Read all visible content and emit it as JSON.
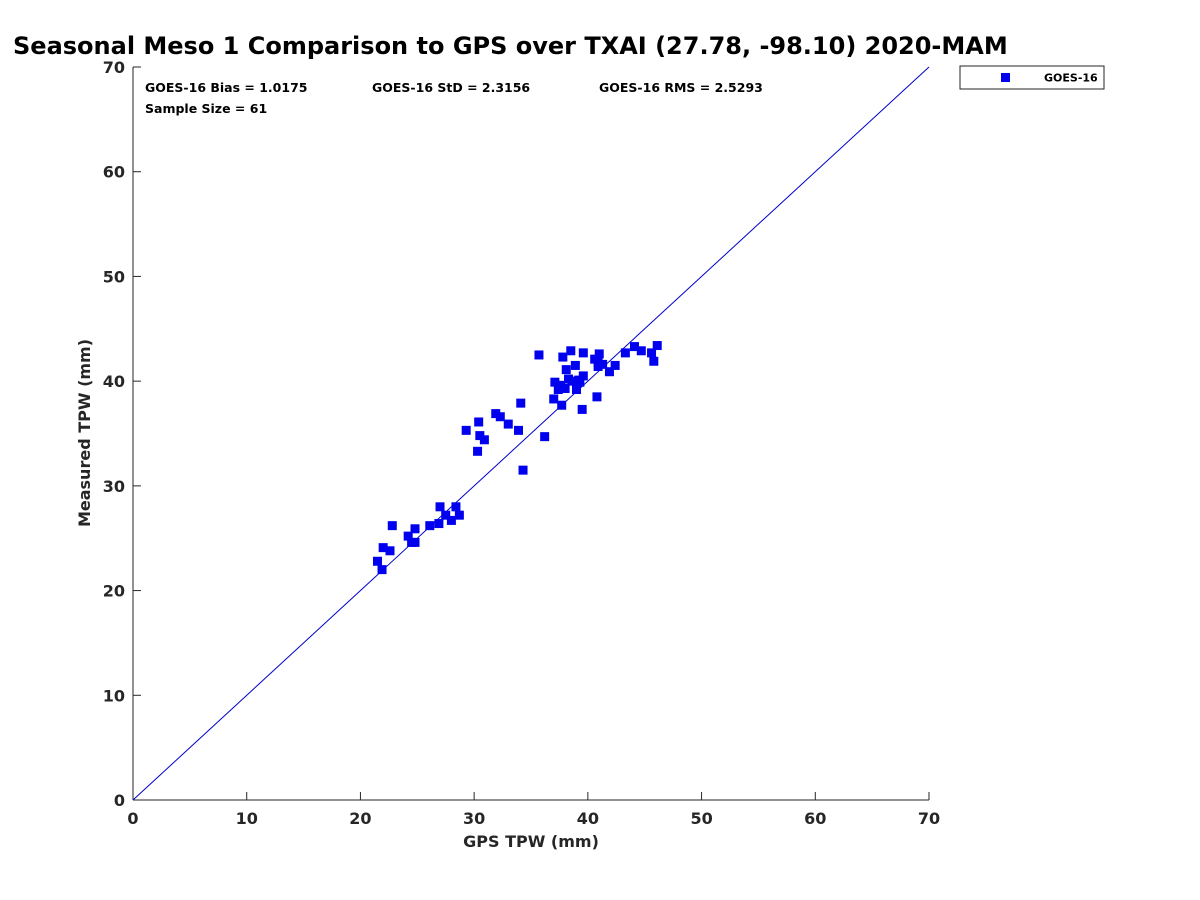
{
  "colors": {
    "series": "#0000ee",
    "axis": "#262626",
    "line": "#0000cc"
  },
  "chart_data": {
    "type": "scatter",
    "title": "Seasonal Meso 1 Comparison to GPS over TXAI (27.78, -98.10) 2020-MAM",
    "xlabel": "GPS TPW (mm)",
    "ylabel": "Measured TPW (mm)",
    "xlim": [
      0,
      70
    ],
    "ylim": [
      0,
      70
    ],
    "xticks": [
      "0",
      "10",
      "20",
      "30",
      "40",
      "50",
      "60",
      "70"
    ],
    "yticks": [
      "0",
      "10",
      "20",
      "30",
      "40",
      "50",
      "60",
      "70"
    ],
    "grid": false,
    "legend_position": "outside-top-right",
    "reference_line": {
      "name": "1:1 line",
      "x": [
        0,
        70
      ],
      "y": [
        0,
        70
      ]
    },
    "stats": {
      "bias": "GOES-16 Bias = 1.0175",
      "std": "GOES-16 StD = 2.3156",
      "rms": "GOES-16 RMS = 2.5293",
      "sample": "Sample Size = 61"
    },
    "series": [
      {
        "name": "GOES-16",
        "marker": "square",
        "points": [
          [
            21.5,
            22.8
          ],
          [
            21.9,
            22.0
          ],
          [
            22.0,
            24.1
          ],
          [
            22.6,
            23.8
          ],
          [
            22.8,
            26.2
          ],
          [
            24.2,
            25.2
          ],
          [
            24.5,
            24.6
          ],
          [
            24.8,
            24.6
          ],
          [
            24.8,
            25.9
          ],
          [
            26.1,
            26.2
          ],
          [
            26.9,
            26.4
          ],
          [
            27.0,
            28.0
          ],
          [
            27.5,
            27.2
          ],
          [
            28.0,
            26.7
          ],
          [
            28.4,
            28.0
          ],
          [
            28.7,
            27.2
          ],
          [
            29.3,
            35.3
          ],
          [
            30.3,
            33.3
          ],
          [
            30.4,
            36.1
          ],
          [
            30.5,
            34.8
          ],
          [
            30.9,
            34.4
          ],
          [
            31.9,
            36.9
          ],
          [
            32.3,
            36.6
          ],
          [
            33.0,
            35.9
          ],
          [
            33.9,
            35.3
          ],
          [
            34.1,
            37.9
          ],
          [
            34.3,
            31.5
          ],
          [
            35.7,
            42.5
          ],
          [
            36.2,
            34.7
          ],
          [
            37.0,
            38.3
          ],
          [
            37.1,
            39.9
          ],
          [
            37.4,
            39.2
          ],
          [
            37.6,
            39.6
          ],
          [
            37.7,
            37.7
          ],
          [
            37.8,
            42.3
          ],
          [
            38.0,
            39.3
          ],
          [
            38.1,
            41.1
          ],
          [
            38.3,
            40.2
          ],
          [
            38.5,
            42.9
          ],
          [
            38.9,
            41.5
          ],
          [
            39.0,
            39.2
          ],
          [
            39.3,
            39.9
          ],
          [
            39.5,
            37.3
          ],
          [
            39.6,
            40.5
          ],
          [
            39.6,
            42.7
          ],
          [
            40.8,
            38.5
          ],
          [
            40.9,
            41.9
          ],
          [
            40.9,
            41.4
          ],
          [
            41.0,
            42.6
          ],
          [
            41.3,
            41.6
          ],
          [
            41.9,
            40.9
          ],
          [
            42.4,
            41.5
          ],
          [
            43.3,
            42.7
          ],
          [
            44.1,
            43.3
          ],
          [
            44.7,
            42.9
          ],
          [
            45.6,
            42.7
          ],
          [
            45.8,
            41.9
          ],
          [
            46.1,
            43.4
          ],
          [
            40.6,
            42.1
          ],
          [
            38.6,
            40.0
          ],
          [
            39.2,
            40.1
          ]
        ]
      }
    ]
  }
}
